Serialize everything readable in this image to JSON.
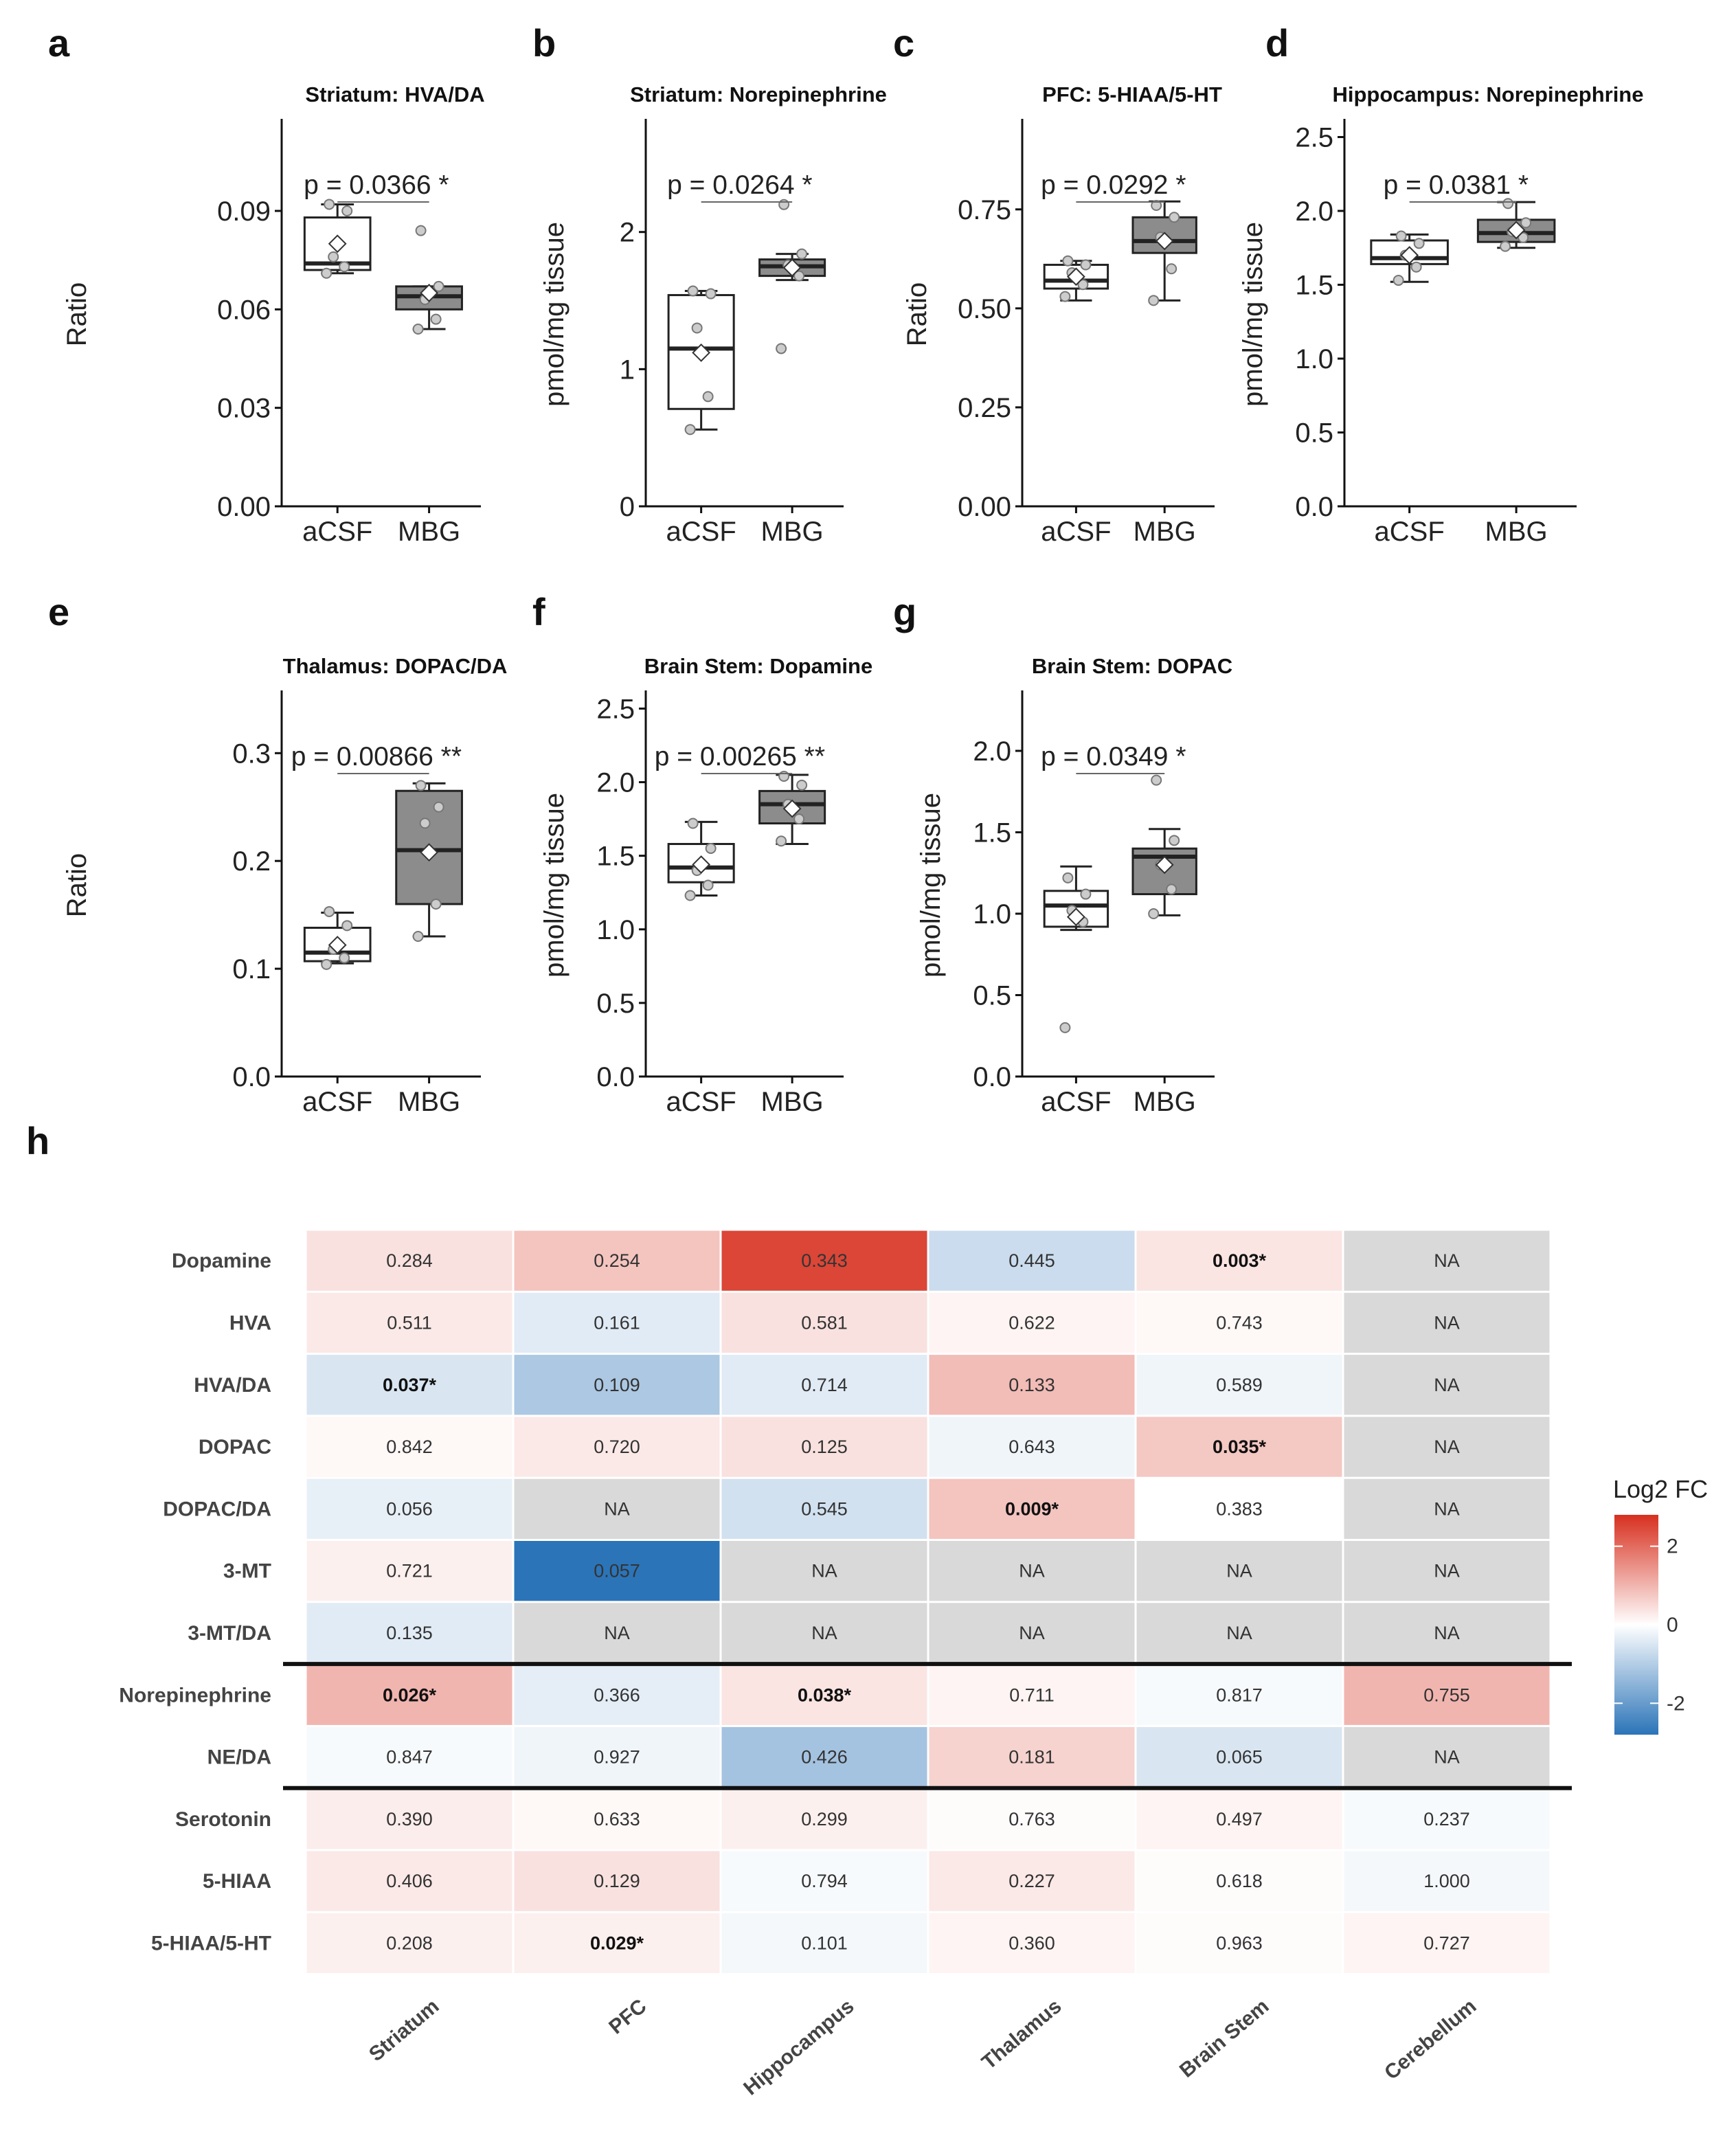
{
  "panel_letters": [
    "a",
    "b",
    "c",
    "d",
    "e",
    "f",
    "g",
    "h"
  ],
  "chart_data": [
    {
      "type": "box",
      "panel": "a",
      "title": "Striatum: HVA/DA",
      "ylabel": "Ratio",
      "ylim": [
        0,
        0.117
      ],
      "yticks": [
        0,
        0.03,
        0.06,
        0.09
      ],
      "yticklabels": [
        "0.00",
        "0.03",
        "0.06",
        "0.09"
      ],
      "categories": [
        "aCSF",
        "MBG"
      ],
      "pvalue": "p = 0.0366 *",
      "groups": [
        {
          "name": "aCSF",
          "color": "#ffffff",
          "min": 0.071,
          "q1": 0.072,
          "median": 0.074,
          "q3": 0.088,
          "max": 0.092,
          "mean": 0.08,
          "points": [
            0.071,
            0.073,
            0.076,
            0.09,
            0.092
          ]
        },
        {
          "name": "MBG",
          "color": "#8c8c8c",
          "min": 0.054,
          "q1": 0.06,
          "median": 0.064,
          "q3": 0.067,
          "max": 0.067,
          "mean": 0.065,
          "points": [
            0.054,
            0.057,
            0.063,
            0.067,
            0.084
          ]
        }
      ]
    },
    {
      "type": "box",
      "panel": "b",
      "title": "Striatum: Norepinephrine",
      "ylabel": "pmol/mg tissue",
      "ylim": [
        0,
        2.8
      ],
      "yticks": [
        0,
        1,
        2
      ],
      "yticklabels": [
        "0",
        "1",
        "2"
      ],
      "categories": [
        "aCSF",
        "MBG"
      ],
      "pvalue": "p = 0.0264 *",
      "groups": [
        {
          "name": "aCSF",
          "color": "#ffffff",
          "min": 0.56,
          "q1": 0.71,
          "median": 1.15,
          "q3": 1.54,
          "max": 1.57,
          "mean": 1.12,
          "points": [
            0.56,
            0.8,
            1.3,
            1.55,
            1.57
          ]
        },
        {
          "name": "MBG",
          "color": "#8c8c8c",
          "min": 1.65,
          "q1": 1.68,
          "median": 1.75,
          "q3": 1.8,
          "max": 1.84,
          "mean": 1.74,
          "points": [
            1.15,
            1.68,
            1.76,
            1.84,
            2.2
          ]
        }
      ]
    },
    {
      "type": "box",
      "panel": "c",
      "title": "PFC: 5-HIAA/5-HT",
      "ylabel": "Ratio",
      "ylim": [
        0,
        0.97
      ],
      "yticks": [
        0,
        0.25,
        0.5,
        0.75
      ],
      "yticklabels": [
        "0.00",
        "0.25",
        "0.50",
        "0.75"
      ],
      "categories": [
        "aCSF",
        "MBG"
      ],
      "pvalue": "p = 0.0292 *",
      "groups": [
        {
          "name": "aCSF",
          "color": "#ffffff",
          "min": 0.52,
          "q1": 0.55,
          "median": 0.57,
          "q3": 0.61,
          "max": 0.62,
          "mean": 0.58,
          "points": [
            0.53,
            0.56,
            0.59,
            0.61,
            0.62
          ]
        },
        {
          "name": "MBG",
          "color": "#8c8c8c",
          "min": 0.52,
          "q1": 0.64,
          "median": 0.67,
          "q3": 0.73,
          "max": 0.77,
          "mean": 0.67,
          "points": [
            0.52,
            0.6,
            0.68,
            0.73,
            0.76
          ]
        }
      ]
    },
    {
      "type": "box",
      "panel": "d",
      "title": "Hippocampus: Norepinephrine",
      "ylabel": "pmol/mg tissue",
      "ylim": [
        0,
        2.6
      ],
      "yticks": [
        0,
        0.5,
        1,
        1.5,
        2,
        2.5
      ],
      "yticklabels": [
        "0.0",
        "0.5",
        "1.0",
        "1.5",
        "2.0",
        "2.5"
      ],
      "categories": [
        "aCSF",
        "MBG"
      ],
      "pvalue": "p = 0.0381 *",
      "groups": [
        {
          "name": "aCSF",
          "color": "#ffffff",
          "min": 1.52,
          "q1": 1.64,
          "median": 1.68,
          "q3": 1.8,
          "max": 1.84,
          "mean": 1.7,
          "points": [
            1.53,
            1.62,
            1.7,
            1.78,
            1.83
          ]
        },
        {
          "name": "MBG",
          "color": "#8c8c8c",
          "min": 1.75,
          "q1": 1.79,
          "median": 1.85,
          "q3": 1.94,
          "max": 2.06,
          "mean": 1.87,
          "points": [
            1.76,
            1.82,
            1.86,
            1.92,
            2.05
          ]
        }
      ]
    },
    {
      "type": "box",
      "panel": "e",
      "title": "Thalamus: DOPAC/DA",
      "ylabel": "Ratio",
      "ylim": [
        0,
        0.355
      ],
      "yticks": [
        0,
        0.1,
        0.2,
        0.3
      ],
      "yticklabels": [
        "0.0",
        "0.1",
        "0.2",
        "0.3"
      ],
      "categories": [
        "aCSF",
        "MBG"
      ],
      "pvalue": "p = 0.00866 **",
      "groups": [
        {
          "name": "aCSF",
          "color": "#ffffff",
          "min": 0.105,
          "q1": 0.107,
          "median": 0.115,
          "q3": 0.138,
          "max": 0.152,
          "mean": 0.122,
          "points": [
            0.104,
            0.11,
            0.118,
            0.14,
            0.153
          ]
        },
        {
          "name": "MBG",
          "color": "#8c8c8c",
          "min": 0.13,
          "q1": 0.16,
          "median": 0.21,
          "q3": 0.265,
          "max": 0.272,
          "mean": 0.208,
          "points": [
            0.13,
            0.16,
            0.235,
            0.25,
            0.27
          ]
        }
      ]
    },
    {
      "type": "box",
      "panel": "f",
      "title": "Brain Stem: Dopamine",
      "ylabel": "pmol/mg tissue",
      "ylim": [
        0,
        2.6
      ],
      "yticks": [
        0,
        0.5,
        1,
        1.5,
        2,
        2.5
      ],
      "yticklabels": [
        "0.0",
        "0.5",
        "1.0",
        "1.5",
        "2.0",
        "2.5"
      ],
      "categories": [
        "aCSF",
        "MBG"
      ],
      "pvalue": "p = 0.00265 **",
      "groups": [
        {
          "name": "aCSF",
          "color": "#ffffff",
          "min": 1.23,
          "q1": 1.32,
          "median": 1.42,
          "q3": 1.58,
          "max": 1.73,
          "mean": 1.44,
          "points": [
            1.23,
            1.3,
            1.4,
            1.55,
            1.72
          ]
        },
        {
          "name": "MBG",
          "color": "#8c8c8c",
          "min": 1.58,
          "q1": 1.72,
          "median": 1.85,
          "q3": 1.94,
          "max": 2.05,
          "mean": 1.82,
          "points": [
            1.6,
            1.75,
            1.85,
            1.98,
            2.04
          ]
        }
      ]
    },
    {
      "type": "box",
      "panel": "g",
      "title": "Brain Stem: DOPAC",
      "ylabel": "pmol/mg tissue",
      "ylim": [
        0,
        2.35
      ],
      "yticks": [
        0,
        0.5,
        1,
        1.5,
        2
      ],
      "yticklabels": [
        "0.0",
        "0.5",
        "1.0",
        "1.5",
        "2.0"
      ],
      "categories": [
        "aCSF",
        "MBG"
      ],
      "pvalue": "p = 0.0349 *",
      "groups": [
        {
          "name": "aCSF",
          "color": "#ffffff",
          "min": 0.9,
          "q1": 0.92,
          "median": 1.05,
          "q3": 1.14,
          "max": 1.29,
          "mean": 0.98,
          "points": [
            0.3,
            0.95,
            1.02,
            1.12,
            1.22
          ]
        },
        {
          "name": "MBG",
          "color": "#8c8c8c",
          "min": 0.99,
          "q1": 1.12,
          "median": 1.35,
          "q3": 1.4,
          "max": 1.52,
          "mean": 1.3,
          "points": [
            1.0,
            1.15,
            1.3,
            1.45,
            1.82
          ]
        }
      ]
    },
    {
      "type": "heatmap",
      "panel": "h",
      "legend_title": "Log2 FC",
      "legend_ticks": [
        2,
        0,
        -2
      ],
      "legend_ticklabels": [
        "2",
        "0",
        "-2"
      ],
      "columns": [
        "Striatum",
        "PFC",
        "Hippocampus",
        "Thalamus",
        "Brain Stem",
        "Cerebellum"
      ],
      "rows": [
        "Dopamine",
        "HVA",
        "HVA/DA",
        "DOPAC",
        "DOPAC/DA",
        "3-MT",
        "3-MT/DA",
        "Norepinephrine",
        "NE/DA",
        "Serotonin",
        "5-HIAA",
        "5-HIAA/5-HT"
      ],
      "row_separators_after": [
        6,
        8
      ],
      "cells": [
        [
          {
            "t": "0.284",
            "fc": 0.4
          },
          {
            "t": "0.254",
            "fc": 0.8
          },
          {
            "t": "0.343",
            "fc": 2.5
          },
          {
            "t": "0.445",
            "fc": -0.7
          },
          {
            "t": "0.003*",
            "fc": 0.35,
            "sig": true
          },
          {
            "t": "NA",
            "fc": null
          }
        ],
        [
          {
            "t": "0.511",
            "fc": 0.3
          },
          {
            "t": "0.161",
            "fc": -0.4
          },
          {
            "t": "0.581",
            "fc": 0.4
          },
          {
            "t": "0.622",
            "fc": 0.15
          },
          {
            "t": "0.743",
            "fc": 0.1
          },
          {
            "t": "NA",
            "fc": null
          }
        ],
        [
          {
            "t": "0.037*",
            "fc": -0.5,
            "sig": true
          },
          {
            "t": "0.109",
            "fc": -1.1
          },
          {
            "t": "0.714",
            "fc": -0.4
          },
          {
            "t": "0.133",
            "fc": 0.9
          },
          {
            "t": "0.589",
            "fc": -0.2
          },
          {
            "t": "NA",
            "fc": null
          }
        ],
        [
          {
            "t": "0.842",
            "fc": 0.1
          },
          {
            "t": "0.720",
            "fc": 0.3
          },
          {
            "t": "0.125",
            "fc": 0.4
          },
          {
            "t": "0.643",
            "fc": -0.2
          },
          {
            "t": "0.035*",
            "fc": 0.75,
            "sig": true
          },
          {
            "t": "NA",
            "fc": null
          }
        ],
        [
          {
            "t": "0.056",
            "fc": -0.3
          },
          {
            "t": "NA",
            "fc": null
          },
          {
            "t": "0.545",
            "fc": -0.6
          },
          {
            "t": "0.009*",
            "fc": 0.8,
            "sig": true
          },
          {
            "t": "0.383",
            "fc": 0.0
          },
          {
            "t": "NA",
            "fc": null
          }
        ],
        [
          {
            "t": "0.721",
            "fc": 0.2
          },
          {
            "t": "0.057",
            "fc": -2.8
          },
          {
            "t": "NA",
            "fc": null
          },
          {
            "t": "NA",
            "fc": null
          },
          {
            "t": "NA",
            "fc": null
          },
          {
            "t": "NA",
            "fc": null
          }
        ],
        [
          {
            "t": "0.135",
            "fc": -0.4
          },
          {
            "t": "NA",
            "fc": null
          },
          {
            "t": "NA",
            "fc": null
          },
          {
            "t": "NA",
            "fc": null
          },
          {
            "t": "NA",
            "fc": null
          },
          {
            "t": "NA",
            "fc": null
          }
        ],
        [
          {
            "t": "0.026*",
            "fc": 1.0,
            "sig": true
          },
          {
            "t": "0.366",
            "fc": -0.35
          },
          {
            "t": "0.038*",
            "fc": 0.35,
            "sig": true
          },
          {
            "t": "0.711",
            "fc": 0.15
          },
          {
            "t": "0.817",
            "fc": -0.1
          },
          {
            "t": "0.755",
            "fc": 1.0
          }
        ],
        [
          {
            "t": "0.847",
            "fc": -0.1
          },
          {
            "t": "0.927",
            "fc": -0.2
          },
          {
            "t": "0.426",
            "fc": -1.2
          },
          {
            "t": "0.181",
            "fc": 0.6
          },
          {
            "t": "0.065",
            "fc": -0.5
          },
          {
            "t": "NA",
            "fc": null
          }
        ],
        [
          {
            "t": "0.390",
            "fc": 0.25
          },
          {
            "t": "0.633",
            "fc": 0.1
          },
          {
            "t": "0.299",
            "fc": 0.2
          },
          {
            "t": "0.763",
            "fc": 0.05
          },
          {
            "t": "0.497",
            "fc": 0.15
          },
          {
            "t": "0.237",
            "fc": -0.1
          }
        ],
        [
          {
            "t": "0.406",
            "fc": 0.3
          },
          {
            "t": "0.129",
            "fc": 0.4
          },
          {
            "t": "0.794",
            "fc": -0.1
          },
          {
            "t": "0.227",
            "fc": 0.3
          },
          {
            "t": "0.618",
            "fc": 0.05
          },
          {
            "t": "1.000",
            "fc": -0.15
          }
        ],
        [
          {
            "t": "0.208",
            "fc": 0.2
          },
          {
            "t": "0.029*",
            "fc": 0.2,
            "sig": true
          },
          {
            "t": "0.101",
            "fc": -0.15
          },
          {
            "t": "0.360",
            "fc": 0.15
          },
          {
            "t": "0.963",
            "fc": 0.05
          },
          {
            "t": "0.727",
            "fc": 0.15
          }
        ]
      ]
    }
  ],
  "colors": {
    "acsf_fill": "#ffffff",
    "mbg_fill": "#8c8c8c",
    "point_fill": "#cccccc",
    "na_fill": "#d9d9d9",
    "fc_high": "#d7301f",
    "fc_mid": "#ffffff",
    "fc_low": "#2b74b8"
  }
}
